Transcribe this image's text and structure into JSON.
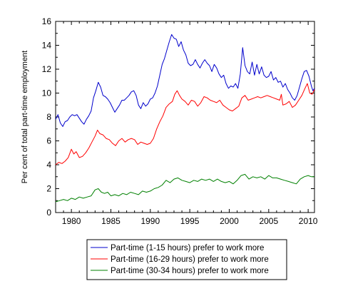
{
  "chart_data": {
    "type": "line",
    "title": "",
    "xlabel": "",
    "ylabel": "Per cent of total part-time employment",
    "xlim": [
      1978,
      2010.8
    ],
    "ylim": [
      0,
      16
    ],
    "x_ticks": [
      1980,
      1985,
      1990,
      1995,
      2000,
      2005,
      2010
    ],
    "x_tick_labels": [
      "1980",
      "1985",
      "1990",
      "1995",
      "2000",
      "2005",
      "2010"
    ],
    "y_ticks": [
      0,
      2,
      4,
      6,
      8,
      10,
      12,
      14,
      16
    ],
    "y_tick_labels": [
      "0",
      "2",
      "4",
      "6",
      "8",
      "10",
      "12",
      "14",
      "16"
    ],
    "grid": false,
    "legend_position": "bottom-center",
    "series": [
      {
        "name": "Part-time (1-15 hours) prefer to work more",
        "color": "#0000cc",
        "points": [
          [
            1978.0,
            7.8
          ],
          [
            1978.3,
            8.2
          ],
          [
            1978.6,
            7.5
          ],
          [
            1978.9,
            7.2
          ],
          [
            1979.2,
            7.6
          ],
          [
            1979.5,
            7.7
          ],
          [
            1979.8,
            8.0
          ],
          [
            1980.1,
            8.2
          ],
          [
            1980.4,
            8.1
          ],
          [
            1980.7,
            8.2
          ],
          [
            1981.0,
            7.9
          ],
          [
            1981.3,
            7.6
          ],
          [
            1981.6,
            7.4
          ],
          [
            1981.9,
            7.8
          ],
          [
            1982.2,
            8.1
          ],
          [
            1982.5,
            8.5
          ],
          [
            1982.8,
            9.6
          ],
          [
            1983.1,
            10.2
          ],
          [
            1983.4,
            10.9
          ],
          [
            1983.7,
            10.5
          ],
          [
            1984.0,
            9.8
          ],
          [
            1984.3,
            9.7
          ],
          [
            1984.6,
            9.5
          ],
          [
            1984.9,
            9.2
          ],
          [
            1985.2,
            8.8
          ],
          [
            1985.5,
            8.4
          ],
          [
            1985.8,
            8.7
          ],
          [
            1986.1,
            9.0
          ],
          [
            1986.4,
            9.4
          ],
          [
            1986.7,
            9.4
          ],
          [
            1987.0,
            9.6
          ],
          [
            1987.3,
            9.8
          ],
          [
            1987.6,
            10.1
          ],
          [
            1987.9,
            10.2
          ],
          [
            1988.2,
            9.8
          ],
          [
            1988.5,
            9.0
          ],
          [
            1988.8,
            8.7
          ],
          [
            1989.1,
            9.2
          ],
          [
            1989.4,
            8.9
          ],
          [
            1989.7,
            9.1
          ],
          [
            1990.0,
            9.5
          ],
          [
            1990.3,
            9.6
          ],
          [
            1990.6,
            10.0
          ],
          [
            1990.9,
            10.6
          ],
          [
            1991.2,
            11.5
          ],
          [
            1991.5,
            12.4
          ],
          [
            1991.8,
            12.9
          ],
          [
            1992.1,
            13.6
          ],
          [
            1992.4,
            14.3
          ],
          [
            1992.7,
            14.9
          ],
          [
            1993.0,
            14.6
          ],
          [
            1993.3,
            14.5
          ],
          [
            1993.6,
            13.9
          ],
          [
            1993.9,
            14.3
          ],
          [
            1994.2,
            13.6
          ],
          [
            1994.5,
            13.2
          ],
          [
            1994.8,
            12.5
          ],
          [
            1995.1,
            12.3
          ],
          [
            1995.4,
            12.4
          ],
          [
            1995.7,
            12.8
          ],
          [
            1996.0,
            12.4
          ],
          [
            1996.3,
            12.1
          ],
          [
            1996.6,
            12.5
          ],
          [
            1996.9,
            12.8
          ],
          [
            1997.2,
            12.5
          ],
          [
            1997.5,
            12.3
          ],
          [
            1997.8,
            11.8
          ],
          [
            1998.1,
            12.4
          ],
          [
            1998.4,
            12.1
          ],
          [
            1998.7,
            11.6
          ],
          [
            1999.0,
            11.3
          ],
          [
            1999.3,
            11.5
          ],
          [
            1999.6,
            10.8
          ],
          [
            1999.9,
            10.4
          ],
          [
            2000.2,
            10.6
          ],
          [
            2000.5,
            10.5
          ],
          [
            2000.8,
            10.8
          ],
          [
            2001.1,
            10.4
          ],
          [
            2001.4,
            11.6
          ],
          [
            2001.7,
            13.8
          ],
          [
            2002.0,
            12.3
          ],
          [
            2002.3,
            11.8
          ],
          [
            2002.6,
            11.6
          ],
          [
            2002.9,
            12.6
          ],
          [
            2003.2,
            11.5
          ],
          [
            2003.5,
            12.4
          ],
          [
            2003.8,
            11.6
          ],
          [
            2004.1,
            12.2
          ],
          [
            2004.4,
            11.5
          ],
          [
            2004.7,
            11.3
          ],
          [
            2005.0,
            11.4
          ],
          [
            2005.3,
            11.8
          ],
          [
            2005.6,
            11.1
          ],
          [
            2005.9,
            11.3
          ],
          [
            2006.2,
            10.9
          ],
          [
            2006.5,
            11.0
          ],
          [
            2006.8,
            10.5
          ],
          [
            2007.1,
            10.8
          ],
          [
            2007.4,
            10.3
          ],
          [
            2007.7,
            10.0
          ],
          [
            2008.0,
            9.6
          ],
          [
            2008.3,
            9.4
          ],
          [
            2008.6,
            9.8
          ],
          [
            2008.9,
            10.5
          ],
          [
            2009.2,
            11.2
          ],
          [
            2009.5,
            11.8
          ],
          [
            2009.8,
            11.9
          ],
          [
            2010.1,
            11.4
          ],
          [
            2010.4,
            10.6
          ],
          [
            2010.6,
            10.2
          ],
          [
            2010.8,
            10.4
          ]
        ]
      },
      {
        "name": "Part-time (16-29 hours) prefer to work more",
        "color": "#ff0000",
        "points": [
          [
            1978.0,
            4.0
          ],
          [
            1978.4,
            4.2
          ],
          [
            1978.8,
            4.1
          ],
          [
            1979.2,
            4.3
          ],
          [
            1979.6,
            4.6
          ],
          [
            1980.0,
            5.3
          ],
          [
            1980.3,
            4.9
          ],
          [
            1980.6,
            5.1
          ],
          [
            1981.0,
            4.6
          ],
          [
            1981.4,
            4.7
          ],
          [
            1981.8,
            5.0
          ],
          [
            1982.2,
            5.4
          ],
          [
            1982.6,
            5.9
          ],
          [
            1983.0,
            6.4
          ],
          [
            1983.3,
            6.9
          ],
          [
            1983.6,
            6.6
          ],
          [
            1984.0,
            6.5
          ],
          [
            1984.4,
            6.2
          ],
          [
            1984.8,
            6.1
          ],
          [
            1985.2,
            5.8
          ],
          [
            1985.6,
            5.6
          ],
          [
            1986.0,
            6.0
          ],
          [
            1986.4,
            6.2
          ],
          [
            1986.8,
            5.9
          ],
          [
            1987.2,
            6.1
          ],
          [
            1987.6,
            6.2
          ],
          [
            1988.0,
            6.1
          ],
          [
            1988.4,
            5.7
          ],
          [
            1988.8,
            5.9
          ],
          [
            1989.2,
            5.8
          ],
          [
            1989.6,
            5.7
          ],
          [
            1990.0,
            5.8
          ],
          [
            1990.4,
            6.2
          ],
          [
            1990.8,
            7.0
          ],
          [
            1991.2,
            7.6
          ],
          [
            1991.6,
            8.1
          ],
          [
            1992.0,
            8.8
          ],
          [
            1992.4,
            9.1
          ],
          [
            1992.8,
            9.3
          ],
          [
            1993.1,
            9.9
          ],
          [
            1993.4,
            10.2
          ],
          [
            1993.7,
            9.8
          ],
          [
            1994.0,
            9.5
          ],
          [
            1994.4,
            9.3
          ],
          [
            1994.8,
            9.0
          ],
          [
            1995.2,
            9.4
          ],
          [
            1995.6,
            9.3
          ],
          [
            1996.0,
            8.9
          ],
          [
            1996.4,
            9.2
          ],
          [
            1996.8,
            9.7
          ],
          [
            1997.2,
            9.6
          ],
          [
            1997.6,
            9.4
          ],
          [
            1998.0,
            9.3
          ],
          [
            1998.4,
            9.2
          ],
          [
            1998.8,
            9.4
          ],
          [
            1999.2,
            9.0
          ],
          [
            1999.6,
            8.8
          ],
          [
            2000.0,
            8.6
          ],
          [
            2000.4,
            8.5
          ],
          [
            2000.8,
            8.7
          ],
          [
            2001.2,
            8.9
          ],
          [
            2001.6,
            9.6
          ],
          [
            2002.0,
            9.8
          ],
          [
            2002.4,
            9.4
          ],
          [
            2002.8,
            9.5
          ],
          [
            2003.2,
            9.6
          ],
          [
            2003.6,
            9.7
          ],
          [
            2004.0,
            9.6
          ],
          [
            2004.4,
            9.7
          ],
          [
            2004.8,
            9.8
          ],
          [
            2005.2,
            9.7
          ],
          [
            2005.6,
            9.6
          ],
          [
            2006.0,
            9.5
          ],
          [
            2006.4,
            9.4
          ],
          [
            2006.6,
            9.9
          ],
          [
            2006.8,
            9.0
          ],
          [
            2007.2,
            9.1
          ],
          [
            2007.6,
            9.3
          ],
          [
            2008.0,
            8.8
          ],
          [
            2008.4,
            9.0
          ],
          [
            2008.8,
            9.4
          ],
          [
            2009.2,
            9.8
          ],
          [
            2009.6,
            10.4
          ],
          [
            2009.9,
            10.8
          ],
          [
            2010.2,
            10.0
          ],
          [
            2010.5,
            9.9
          ],
          [
            2010.8,
            10.3
          ]
        ]
      },
      {
        "name": "Part-time (30-34 hours) prefer to work more",
        "color": "#008000",
        "points": [
          [
            1978.0,
            0.9
          ],
          [
            1978.5,
            1.0
          ],
          [
            1979.0,
            1.1
          ],
          [
            1979.5,
            1.0
          ],
          [
            1980.0,
            1.2
          ],
          [
            1980.5,
            1.1
          ],
          [
            1981.0,
            1.3
          ],
          [
            1981.5,
            1.2
          ],
          [
            1982.0,
            1.3
          ],
          [
            1982.5,
            1.4
          ],
          [
            1983.0,
            1.9
          ],
          [
            1983.4,
            2.0
          ],
          [
            1983.8,
            1.7
          ],
          [
            1984.2,
            1.6
          ],
          [
            1984.6,
            1.7
          ],
          [
            1985.0,
            1.4
          ],
          [
            1985.5,
            1.5
          ],
          [
            1986.0,
            1.4
          ],
          [
            1986.5,
            1.6
          ],
          [
            1987.0,
            1.5
          ],
          [
            1987.5,
            1.7
          ],
          [
            1988.0,
            1.6
          ],
          [
            1988.5,
            1.5
          ],
          [
            1989.0,
            1.8
          ],
          [
            1989.5,
            1.7
          ],
          [
            1990.0,
            1.8
          ],
          [
            1990.5,
            2.0
          ],
          [
            1991.0,
            2.1
          ],
          [
            1991.5,
            2.3
          ],
          [
            1992.0,
            2.7
          ],
          [
            1992.5,
            2.5
          ],
          [
            1993.0,
            2.8
          ],
          [
            1993.5,
            2.9
          ],
          [
            1994.0,
            2.7
          ],
          [
            1994.5,
            2.6
          ],
          [
            1995.0,
            2.5
          ],
          [
            1995.5,
            2.7
          ],
          [
            1996.0,
            2.6
          ],
          [
            1996.5,
            2.8
          ],
          [
            1997.0,
            2.7
          ],
          [
            1997.5,
            2.8
          ],
          [
            1998.0,
            2.6
          ],
          [
            1998.5,
            2.8
          ],
          [
            1999.0,
            2.6
          ],
          [
            1999.5,
            2.5
          ],
          [
            2000.0,
            2.6
          ],
          [
            2000.5,
            2.4
          ],
          [
            2001.0,
            2.7
          ],
          [
            2001.5,
            3.1
          ],
          [
            2002.0,
            3.2
          ],
          [
            2002.5,
            2.8
          ],
          [
            2003.0,
            3.0
          ],
          [
            2003.5,
            2.9
          ],
          [
            2004.0,
            3.0
          ],
          [
            2004.5,
            2.8
          ],
          [
            2005.0,
            3.1
          ],
          [
            2005.5,
            2.9
          ],
          [
            2006.0,
            2.9
          ],
          [
            2006.5,
            2.8
          ],
          [
            2007.0,
            2.7
          ],
          [
            2007.5,
            2.6
          ],
          [
            2008.0,
            2.5
          ],
          [
            2008.5,
            2.4
          ],
          [
            2009.0,
            2.8
          ],
          [
            2009.5,
            3.0
          ],
          [
            2010.0,
            3.1
          ],
          [
            2010.4,
            3.0
          ],
          [
            2010.8,
            3.0
          ]
        ]
      }
    ]
  }
}
